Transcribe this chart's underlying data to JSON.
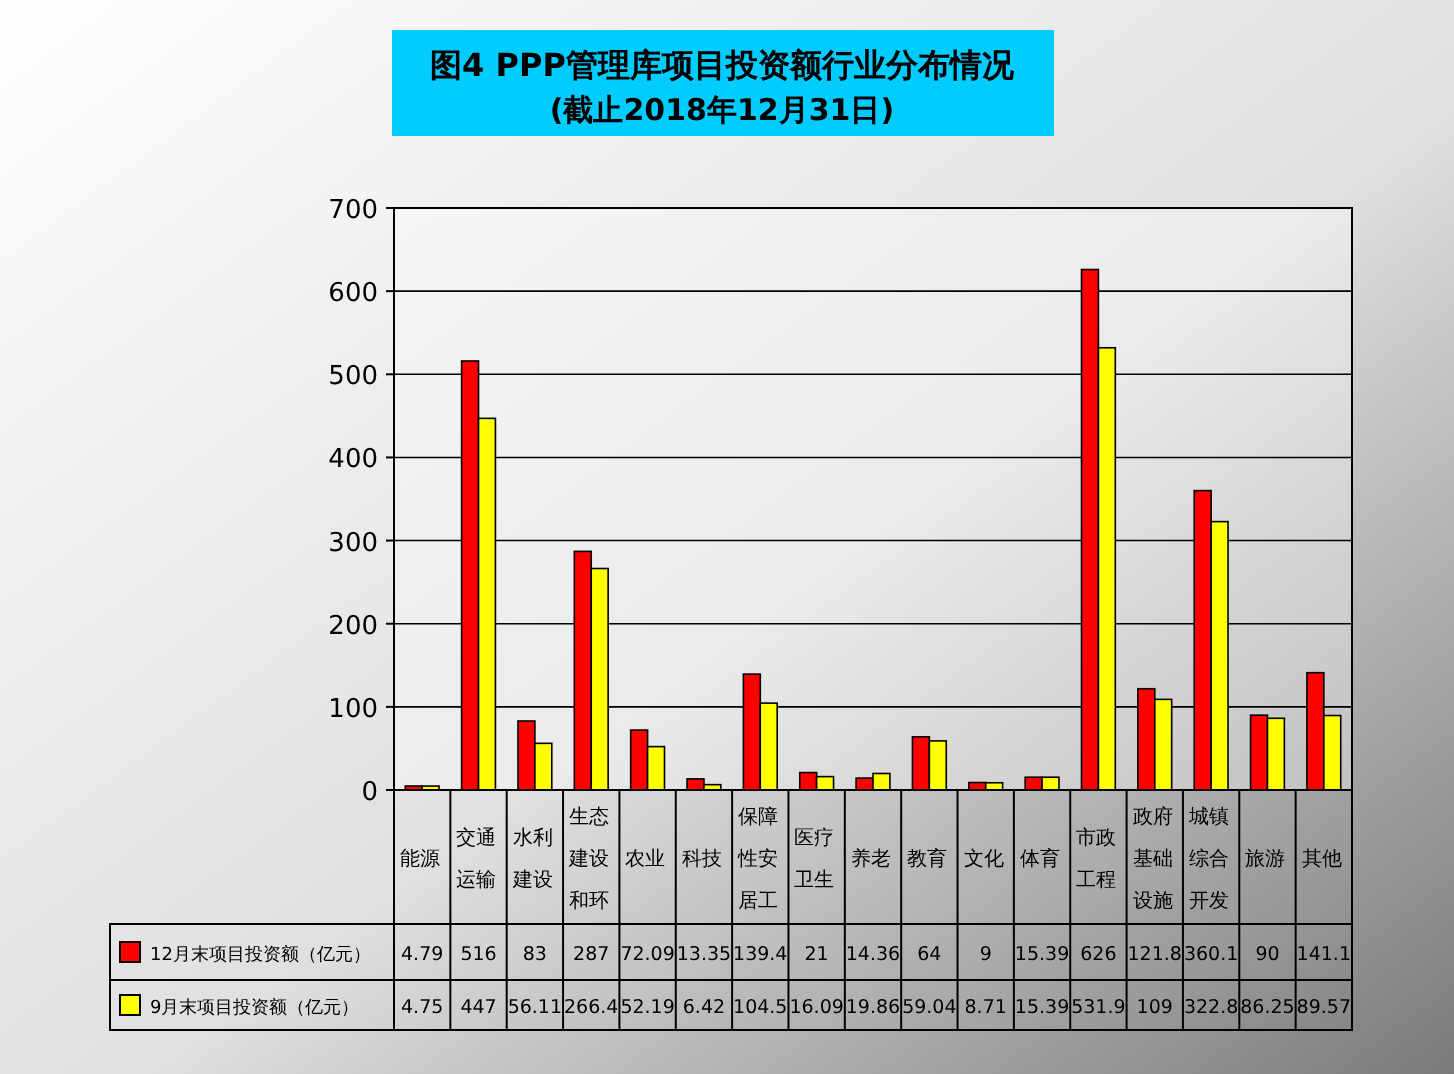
{
  "chart_data": {
    "type": "bar",
    "title": "图4  PPP管理库项目投资额行业分布情况",
    "subtitle": "(截止2018年12月31日)",
    "categories": [
      "能源",
      "交通运输",
      "水利建设",
      "生态建设和环",
      "农业",
      "科技",
      "保障性安居工",
      "医疗卫生",
      "养老",
      "教育",
      "文化",
      "体育",
      "市政工程",
      "政府基础设施",
      "城镇综合开发",
      "旅游",
      "其他"
    ],
    "series": [
      {
        "name": "12月末项目投资额（亿元）",
        "color": "#ff0000",
        "values": [
          4.79,
          516,
          83,
          287,
          72.09,
          13.35,
          139.4,
          21,
          14.36,
          64,
          9,
          15.39,
          626,
          121.8,
          360.1,
          90,
          141.1
        ]
      },
      {
        "name": "9月末项目投资额（亿元）",
        "color": "#ffff00",
        "values": [
          4.75,
          447,
          56.11,
          266.4,
          52.19,
          6.42,
          104.5,
          16.09,
          19.86,
          59.04,
          8.71,
          15.39,
          531.9,
          109,
          322.8,
          86.25,
          89.57
        ]
      }
    ],
    "ylim": [
      0,
      700
    ],
    "yticks": [
      0,
      100,
      200,
      300,
      400,
      500,
      600,
      700
    ],
    "grid": "y",
    "legend": "bottom",
    "data_labels": true
  }
}
